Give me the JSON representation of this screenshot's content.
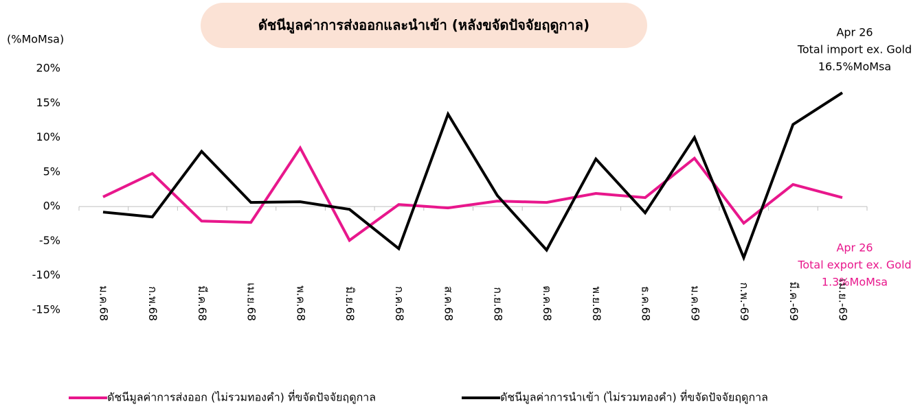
{
  "chart_data": {
    "type": "line",
    "title": "ดัชนีมูลค่าการส่งออกและนำเข้า (หลังขจัดปัจจัยฤดูกาล)",
    "y_label": "(%MoMsa)",
    "categories": [
      "ม.ค.68",
      "ก.พ.68",
      "มี.ค.68",
      "เม.ย.68",
      "พ.ค.68",
      "มิ.ย.68",
      "ก.ค.68",
      "ส.ค.68",
      "ก.ย.68",
      "ต.ค.68",
      "พ.ย.68",
      "ธ.ค.68",
      "ม.ค.69",
      "ก.พ.-69",
      "มี.ค.-69",
      "เม.ย.-69"
    ],
    "series": [
      {
        "name": "ดัชนีมูลค่าการส่งออก (ไม่รวมทองคำ) ที่ขจัดปัจจัยฤดูกาล",
        "color": "#e8178c",
        "values": [
          1.4,
          4.8,
          -2.1,
          -2.3,
          8.5,
          -4.9,
          0.3,
          -0.2,
          0.8,
          0.6,
          1.9,
          1.3,
          7.0,
          -2.4,
          3.2,
          1.3
        ]
      },
      {
        "name": "ดัชนีมูลค่าการนำเข้า (ไม่รวมทองคำ) ที่ขจัดปัจจัยฤดูกาล",
        "color": "#000000",
        "values": [
          -0.8,
          -1.5,
          8.0,
          0.6,
          0.7,
          -0.4,
          -6.1,
          13.4,
          1.6,
          -6.3,
          6.9,
          -0.9,
          10.0,
          -7.4,
          11.9,
          16.5
        ]
      }
    ],
    "ylim": [
      -15,
      20
    ],
    "yticks": [
      {
        "value": -15,
        "label": "-15%"
      },
      {
        "value": -10,
        "label": "-10%"
      },
      {
        "value": -5,
        "label": "-5%"
      },
      {
        "value": 0,
        "label": "0%"
      },
      {
        "value": 5,
        "label": "5%"
      },
      {
        "value": 10,
        "label": "10%"
      },
      {
        "value": 15,
        "label": "15%"
      },
      {
        "value": 20,
        "label": "20%"
      }
    ],
    "annotations": [
      {
        "lines": [
          "Apr 26",
          "Total import ex. Gold",
          "16.5%MoMsa"
        ],
        "color": "#000000"
      },
      {
        "lines": [
          "Apr 26",
          "Total export ex. Gold",
          "1.3%MoMsa"
        ],
        "color": "#e8178c"
      }
    ]
  }
}
